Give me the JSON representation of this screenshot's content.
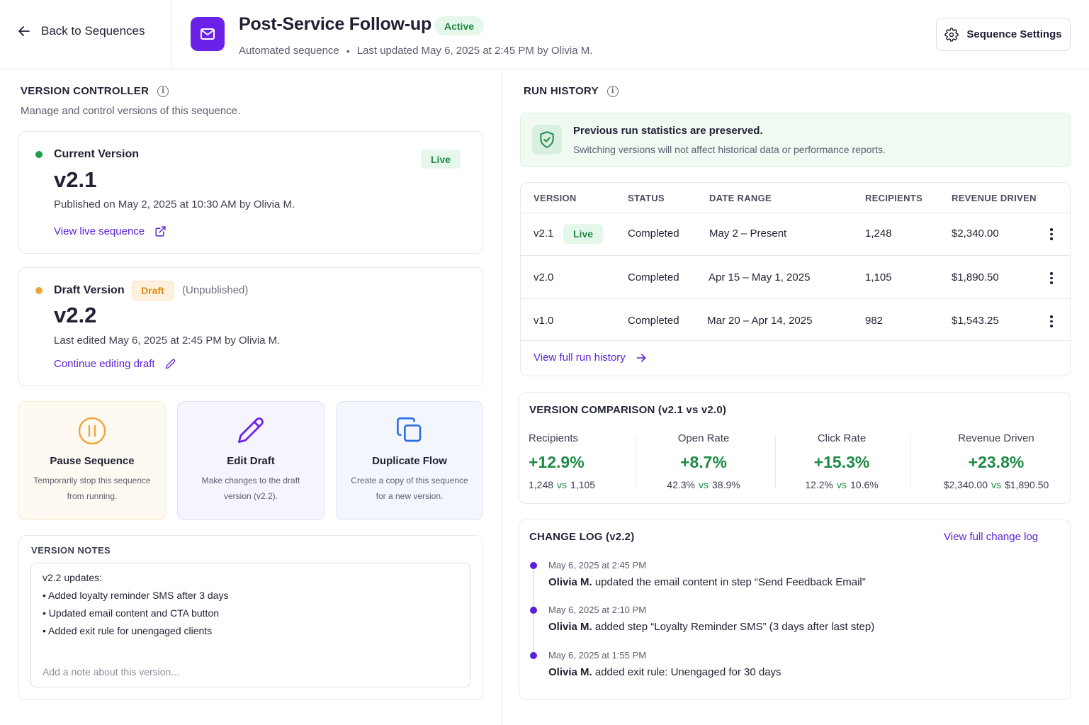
{
  "header": {
    "back_label": "Back to Sequences",
    "title": "Post-Service Follow-up",
    "status": "Active",
    "subtitle_type": "Automated sequence",
    "subtitle_updated": "Last updated May 6, 2025 at 2:45 PM by Olivia M.",
    "settings_label": "Sequence Settings"
  },
  "version_controller": {
    "title": "VERSION CONTROLLER",
    "subtitle": "Manage and control versions of this sequence.",
    "current": {
      "label": "Current Version",
      "badge": "Live",
      "version": "v2.1",
      "meta": "Published on May 2, 2025 at 10:30 AM by Olivia M.",
      "link": "View live sequence"
    },
    "draft": {
      "label": "Draft Version",
      "badge": "Draft",
      "state": "(Unpublished)",
      "version": "v2.2",
      "meta": "Last edited May 6, 2025 at 2:45 PM by Olivia M.",
      "link": "Continue editing draft"
    },
    "actions": [
      {
        "title": "Pause Sequence",
        "desc_1": "Temporarily stop this sequence",
        "desc_2": "from running.",
        "icon": "pause-icon"
      },
      {
        "title": "Edit Draft",
        "desc_1": "Make changes to the draft",
        "desc_2": "version (v2.2).",
        "icon": "pencil-icon"
      },
      {
        "title": "Duplicate Flow",
        "desc_1": "Create a copy of this sequence",
        "desc_2": "for a new version.",
        "icon": "copy-icon"
      }
    ],
    "notes": {
      "label": "VERSION NOTES",
      "lines": [
        "v2.2 updates:",
        "• Added loyalty reminder SMS after 3 days",
        "• Updated email content and CTA button",
        "• Added exit rule for unengaged clients"
      ],
      "placeholder": "Add a note about this version..."
    }
  },
  "run_history": {
    "title": "RUN HISTORY",
    "banner_title": "Previous run statistics are preserved.",
    "banner_sub": "Switching versions will not affect historical data or performance reports.",
    "columns": [
      "VERSION",
      "STATUS",
      "DATE RANGE",
      "RECIPIENTS",
      "REVENUE DRIVEN"
    ],
    "rows": [
      {
        "version": "v2.1",
        "badge": "Live",
        "status": "Completed",
        "range": "May 2 – Present",
        "recipients": "1,248",
        "revenue": "$2,340.00"
      },
      {
        "version": "v2.0",
        "badge": "",
        "status": "Completed",
        "range": "Apr 15 – May 1, 2025",
        "recipients": "1,105",
        "revenue": "$1,890.50"
      },
      {
        "version": "v1.0",
        "badge": "",
        "status": "Completed",
        "range": "Mar 20 – Apr 14, 2025",
        "recipients": "982",
        "revenue": "$1,543.25"
      }
    ],
    "link": "View full run history"
  },
  "comparison": {
    "title": "VERSION COMPARISON (v2.1 vs v2.0)",
    "vs_word": "vs",
    "metrics": [
      {
        "label": "Recipients",
        "delta": "+12.9%",
        "a": "1,248",
        "b": "1,105"
      },
      {
        "label": "Open Rate",
        "delta": "+8.7%",
        "a": "42.3%",
        "b": "38.9%"
      },
      {
        "label": "Click Rate",
        "delta": "+15.3%",
        "a": "12.2%",
        "b": "10.6%"
      },
      {
        "label": "Revenue Driven",
        "delta": "+23.8%",
        "a": "$2,340.00",
        "b": "$1,890.50"
      }
    ]
  },
  "change_log": {
    "title": "CHANGE LOG (v2.2)",
    "link": "View full change log",
    "entries": [
      {
        "time": "May 6, 2025 at 2:45 PM",
        "user": "Olivia M.",
        "text": " updated the email content in step “Send Feedback Email”"
      },
      {
        "time": "May 6, 2025 at 2:10 PM",
        "user": "Olivia M.",
        "text": " added step “Loyalty Reminder SMS” (3 days after last step)"
      },
      {
        "time": "May 6, 2025 at 1:55 PM",
        "user": "Olivia M.",
        "text": " added exit rule: Unengaged for 30 days"
      }
    ]
  },
  "colors": {
    "brand_purple": "#6b21e8",
    "link_purple": "#5b1fd6",
    "success_green": "#1e8a45",
    "draft_orange": "#e38b17"
  }
}
